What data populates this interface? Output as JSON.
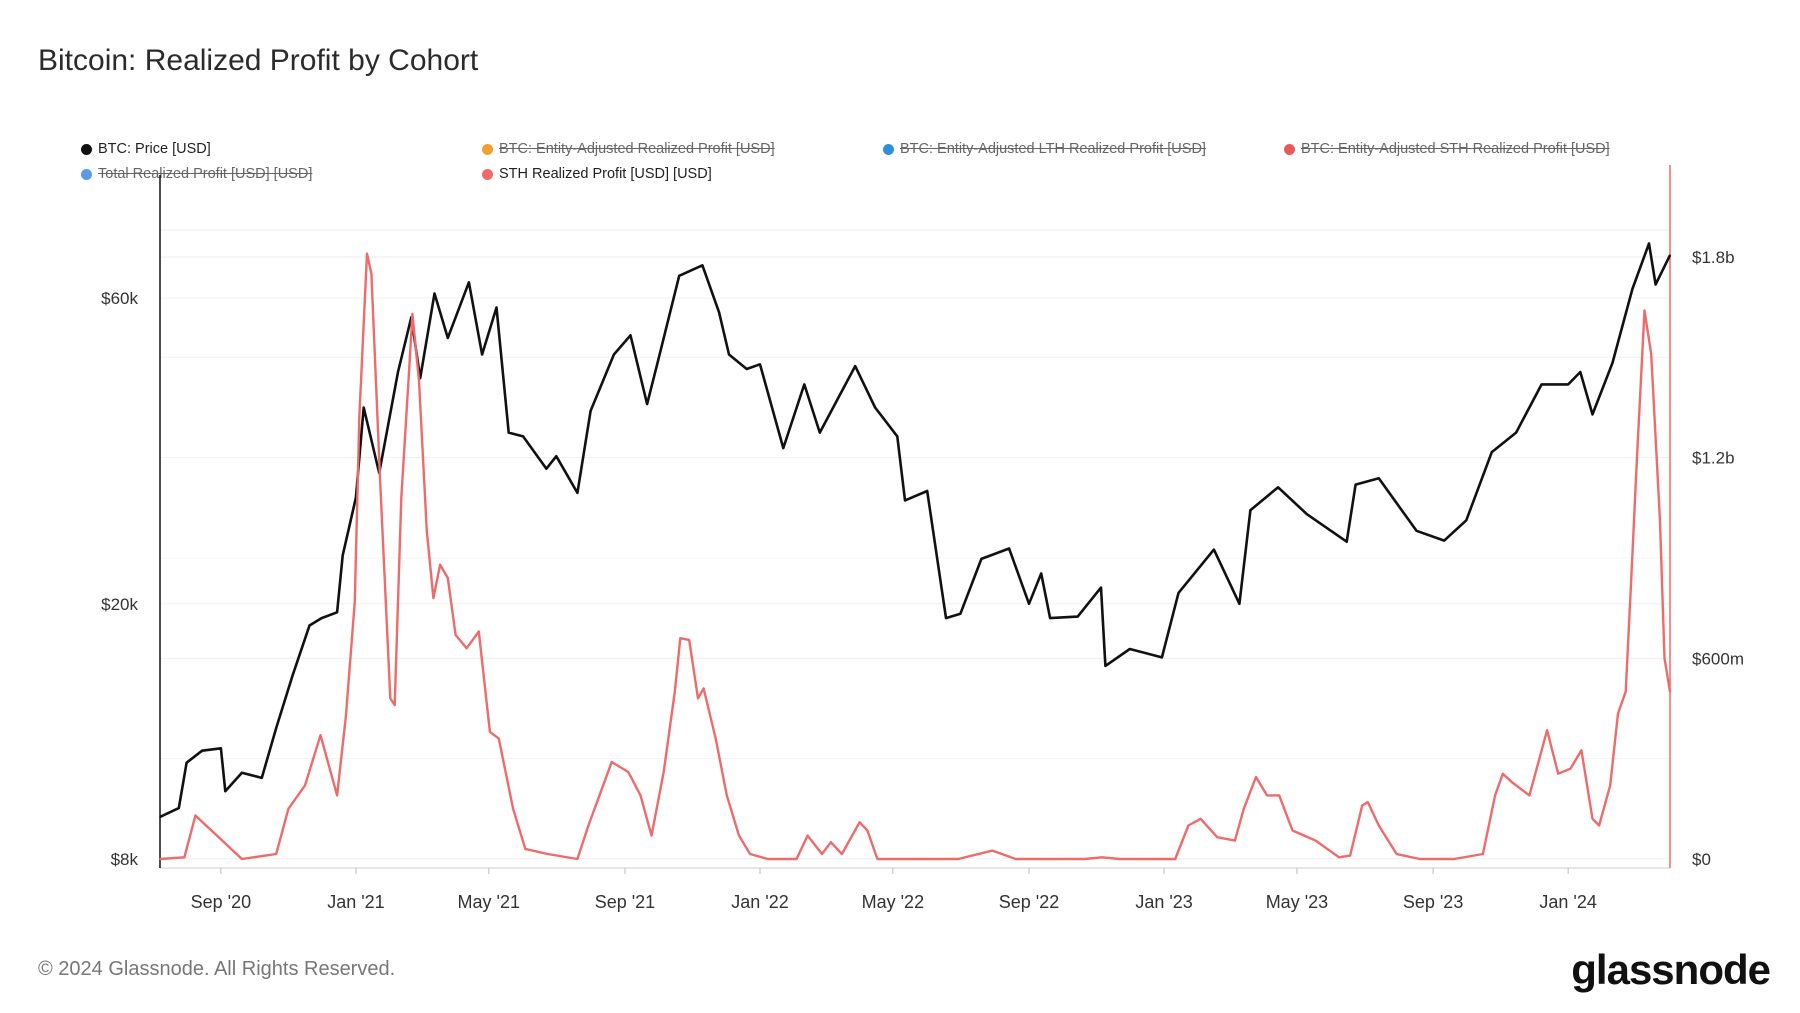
{
  "title": "Bitcoin: Realized Profit by Cohort",
  "legend": [
    {
      "label": "BTC: Price [USD]",
      "color": "#111111",
      "active": true
    },
    {
      "label": "BTC: Entity-Adjusted Realized Profit [USD]",
      "color": "#f0a030",
      "active": false
    },
    {
      "label": "BTC: Entity-Adjusted LTH Realized Profit [USD]",
      "color": "#2f8fd8",
      "active": false
    },
    {
      "label": "BTC: Entity-Adjusted STH Realized Profit [USD]",
      "color": "#e85a5a",
      "active": false
    },
    {
      "label": "Total Realized Profit [USD] [USD]",
      "color": "#5a9be8",
      "active": false
    },
    {
      "label": "STH Realized Profit [USD] [USD]",
      "color": "#ee6b6b",
      "active": true
    }
  ],
  "footer": "© 2024 Glassnode. All Rights Reserved.",
  "logo": "glassnode",
  "chart_data": {
    "type": "line",
    "title": "Bitcoin: Realized Profit by Cohort",
    "x_range": [
      "2020-07-08",
      "2024-04-02"
    ],
    "x_ticks": [
      {
        "date": "2020-09-01",
        "label": "Sep '20"
      },
      {
        "date": "2021-01-01",
        "label": "Jan '21"
      },
      {
        "date": "2021-05-01",
        "label": "May '21"
      },
      {
        "date": "2021-09-01",
        "label": "Sep '21"
      },
      {
        "date": "2022-01-01",
        "label": "Jan '22"
      },
      {
        "date": "2022-05-01",
        "label": "May '22"
      },
      {
        "date": "2022-09-01",
        "label": "Sep '22"
      },
      {
        "date": "2023-01-01",
        "label": "Jan '23"
      },
      {
        "date": "2023-05-01",
        "label": "May '23"
      },
      {
        "date": "2023-09-01",
        "label": "Sep '23"
      },
      {
        "date": "2024-01-01",
        "label": "Jan '24"
      }
    ],
    "y_left": {
      "scale": "log",
      "range": [
        7740,
        96800
      ],
      "ticks": [
        {
          "value": 8000,
          "label": "$8k"
        },
        {
          "value": 20000,
          "label": "$20k"
        },
        {
          "value": 60000,
          "label": "$60k"
        }
      ]
    },
    "y_right": {
      "scale": "linear",
      "unit": "USD millions",
      "range": [
        -27,
        2075
      ],
      "ticks": [
        {
          "value": 0,
          "label": "$0"
        },
        {
          "value": 600,
          "label": "$600m"
        },
        {
          "value": 1200,
          "label": "$1.2b"
        },
        {
          "value": 1800,
          "label": "$1.8b"
        }
      ]
    },
    "grid": true,
    "legend_position": "top",
    "series": [
      {
        "name": "BTC: Price [USD]",
        "axis": "left",
        "color": "#111111",
        "points": [
          [
            "2020-07-08",
            9300
          ],
          [
            "2020-07-25",
            9600
          ],
          [
            "2020-08-01",
            11300
          ],
          [
            "2020-08-15",
            11800
          ],
          [
            "2020-09-01",
            11900
          ],
          [
            "2020-09-05",
            10200
          ],
          [
            "2020-09-20",
            10900
          ],
          [
            "2020-10-08",
            10700
          ],
          [
            "2020-10-21",
            12800
          ],
          [
            "2020-11-05",
            15500
          ],
          [
            "2020-11-20",
            18500
          ],
          [
            "2020-12-01",
            19000
          ],
          [
            "2020-12-15",
            19400
          ],
          [
            "2020-12-20",
            23800
          ],
          [
            "2021-01-01",
            29300
          ],
          [
            "2021-01-08",
            40500
          ],
          [
            "2021-01-22",
            32000
          ],
          [
            "2021-02-08",
            46000
          ],
          [
            "2021-02-20",
            56000
          ],
          [
            "2021-02-28",
            45000
          ],
          [
            "2021-03-13",
            61000
          ],
          [
            "2021-03-25",
            52000
          ],
          [
            "2021-04-13",
            63500
          ],
          [
            "2021-04-25",
            49000
          ],
          [
            "2021-05-08",
            58000
          ],
          [
            "2021-05-19",
            37000
          ],
          [
            "2021-06-01",
            36500
          ],
          [
            "2021-06-22",
            32500
          ],
          [
            "2021-07-01",
            34000
          ],
          [
            "2021-07-20",
            29800
          ],
          [
            "2021-08-01",
            40000
          ],
          [
            "2021-08-22",
            49000
          ],
          [
            "2021-09-06",
            52500
          ],
          [
            "2021-09-21",
            41000
          ],
          [
            "2021-10-01",
            48000
          ],
          [
            "2021-10-20",
            65000
          ],
          [
            "2021-11-10",
            67500
          ],
          [
            "2021-11-25",
            57000
          ],
          [
            "2021-12-04",
            49000
          ],
          [
            "2021-12-20",
            46500
          ],
          [
            "2022-01-01",
            47300
          ],
          [
            "2022-01-22",
            35000
          ],
          [
            "2022-02-10",
            44000
          ],
          [
            "2022-02-24",
            37000
          ],
          [
            "2022-03-28",
            47000
          ],
          [
            "2022-04-15",
            40500
          ],
          [
            "2022-05-05",
            36500
          ],
          [
            "2022-05-12",
            29000
          ],
          [
            "2022-06-01",
            30000
          ],
          [
            "2022-06-18",
            19000
          ],
          [
            "2022-07-01",
            19300
          ],
          [
            "2022-07-20",
            23500
          ],
          [
            "2022-08-14",
            24400
          ],
          [
            "2022-09-01",
            20000
          ],
          [
            "2022-09-12",
            22300
          ],
          [
            "2022-09-20",
            19000
          ],
          [
            "2022-10-15",
            19100
          ],
          [
            "2022-11-05",
            21200
          ],
          [
            "2022-11-09",
            16000
          ],
          [
            "2022-12-01",
            17000
          ],
          [
            "2022-12-30",
            16500
          ],
          [
            "2023-01-14",
            20800
          ],
          [
            "2023-02-15",
            24300
          ],
          [
            "2023-03-10",
            20000
          ],
          [
            "2023-03-20",
            28000
          ],
          [
            "2023-04-14",
            30400
          ],
          [
            "2023-05-10",
            27600
          ],
          [
            "2023-06-15",
            25000
          ],
          [
            "2023-06-23",
            30700
          ],
          [
            "2023-07-14",
            31400
          ],
          [
            "2023-08-17",
            26000
          ],
          [
            "2023-09-11",
            25100
          ],
          [
            "2023-10-01",
            27000
          ],
          [
            "2023-10-24",
            34500
          ],
          [
            "2023-11-15",
            37000
          ],
          [
            "2023-12-08",
            44000
          ],
          [
            "2024-01-01",
            44000
          ],
          [
            "2024-01-12",
            46000
          ],
          [
            "2024-01-23",
            39500
          ],
          [
            "2024-02-10",
            47500
          ],
          [
            "2024-02-28",
            62000
          ],
          [
            "2024-03-14",
            73000
          ],
          [
            "2024-03-20",
            63000
          ],
          [
            "2024-04-02",
            70000
          ]
        ]
      },
      {
        "name": "STH Realized Profit [USD] [USD]",
        "axis": "right",
        "color": "#ee6b6b",
        "points": [
          [
            "2020-07-08",
            0
          ],
          [
            "2020-07-30",
            5
          ],
          [
            "2020-08-09",
            130
          ],
          [
            "2020-08-30",
            65
          ],
          [
            "2020-09-20",
            0
          ],
          [
            "2020-10-21",
            15
          ],
          [
            "2020-11-01",
            150
          ],
          [
            "2020-11-16",
            220
          ],
          [
            "2020-11-30",
            370
          ],
          [
            "2020-12-15",
            190
          ],
          [
            "2020-12-23",
            430
          ],
          [
            "2020-12-31",
            770
          ],
          [
            "2021-01-04",
            1320
          ],
          [
            "2021-01-11",
            1810
          ],
          [
            "2021-01-15",
            1750
          ],
          [
            "2021-01-23",
            1120
          ],
          [
            "2021-02-01",
            480
          ],
          [
            "2021-02-05",
            460
          ],
          [
            "2021-02-11",
            1080
          ],
          [
            "2021-02-18",
            1460
          ],
          [
            "2021-02-21",
            1630
          ],
          [
            "2021-02-27",
            1430
          ],
          [
            "2021-03-06",
            980
          ],
          [
            "2021-03-12",
            780
          ],
          [
            "2021-03-18",
            880
          ],
          [
            "2021-03-25",
            840
          ],
          [
            "2021-04-01",
            670
          ],
          [
            "2021-04-11",
            630
          ],
          [
            "2021-04-22",
            680
          ],
          [
            "2021-05-02",
            380
          ],
          [
            "2021-05-10",
            360
          ],
          [
            "2021-05-23",
            150
          ],
          [
            "2021-06-03",
            30
          ],
          [
            "2021-06-23",
            15
          ],
          [
            "2021-07-20",
            0
          ],
          [
            "2021-07-30",
            100
          ],
          [
            "2021-08-09",
            190
          ],
          [
            "2021-08-20",
            290
          ],
          [
            "2021-09-04",
            260
          ],
          [
            "2021-09-15",
            190
          ],
          [
            "2021-09-25",
            70
          ],
          [
            "2021-10-06",
            260
          ],
          [
            "2021-10-16",
            500
          ],
          [
            "2021-10-21",
            660
          ],
          [
            "2021-10-29",
            655
          ],
          [
            "2021-11-06",
            480
          ],
          [
            "2021-11-11",
            510
          ],
          [
            "2021-11-22",
            360
          ],
          [
            "2021-12-02",
            190
          ],
          [
            "2021-12-13",
            70
          ],
          [
            "2021-12-23",
            15
          ],
          [
            "2022-01-08",
            0
          ],
          [
            "2022-02-03",
            0
          ],
          [
            "2022-02-13",
            70
          ],
          [
            "2022-02-26",
            15
          ],
          [
            "2022-03-06",
            50
          ],
          [
            "2022-03-16",
            15
          ],
          [
            "2022-04-01",
            110
          ],
          [
            "2022-04-08",
            85
          ],
          [
            "2022-04-17",
            0
          ],
          [
            "2022-05-08",
            0
          ],
          [
            "2022-05-28",
            0
          ],
          [
            "2022-06-29",
            0
          ],
          [
            "2022-07-30",
            25
          ],
          [
            "2022-08-20",
            0
          ],
          [
            "2022-09-10",
            0
          ],
          [
            "2022-10-21",
            0
          ],
          [
            "2022-11-06",
            5
          ],
          [
            "2022-11-22",
            0
          ],
          [
            "2022-12-23",
            0
          ],
          [
            "2023-01-11",
            0
          ],
          [
            "2023-01-23",
            100
          ],
          [
            "2023-02-03",
            120
          ],
          [
            "2023-02-18",
            65
          ],
          [
            "2023-03-06",
            55
          ],
          [
            "2023-03-14",
            150
          ],
          [
            "2023-03-25",
            245
          ],
          [
            "2023-04-04",
            190
          ],
          [
            "2023-04-15",
            190
          ],
          [
            "2023-04-27",
            85
          ],
          [
            "2023-05-18",
            55
          ],
          [
            "2023-06-08",
            5
          ],
          [
            "2023-06-18",
            10
          ],
          [
            "2023-06-29",
            160
          ],
          [
            "2023-07-04",
            170
          ],
          [
            "2023-07-14",
            100
          ],
          [
            "2023-07-30",
            15
          ],
          [
            "2023-08-20",
            0
          ],
          [
            "2023-09-20",
            0
          ],
          [
            "2023-10-16",
            15
          ],
          [
            "2023-10-27",
            190
          ],
          [
            "2023-11-03",
            255
          ],
          [
            "2023-11-11",
            230
          ],
          [
            "2023-11-27",
            190
          ],
          [
            "2023-12-13",
            385
          ],
          [
            "2023-12-23",
            255
          ],
          [
            "2024-01-03",
            270
          ],
          [
            "2024-01-13",
            325
          ],
          [
            "2024-01-23",
            120
          ],
          [
            "2024-01-29",
            100
          ],
          [
            "2024-02-08",
            220
          ],
          [
            "2024-02-15",
            435
          ],
          [
            "2024-02-22",
            500
          ],
          [
            "2024-02-27",
            840
          ],
          [
            "2024-03-03",
            1190
          ],
          [
            "2024-03-10",
            1640
          ],
          [
            "2024-03-16",
            1510
          ],
          [
            "2024-03-24",
            1010
          ],
          [
            "2024-03-28",
            600
          ],
          [
            "2024-04-02",
            500
          ]
        ]
      }
    ]
  }
}
